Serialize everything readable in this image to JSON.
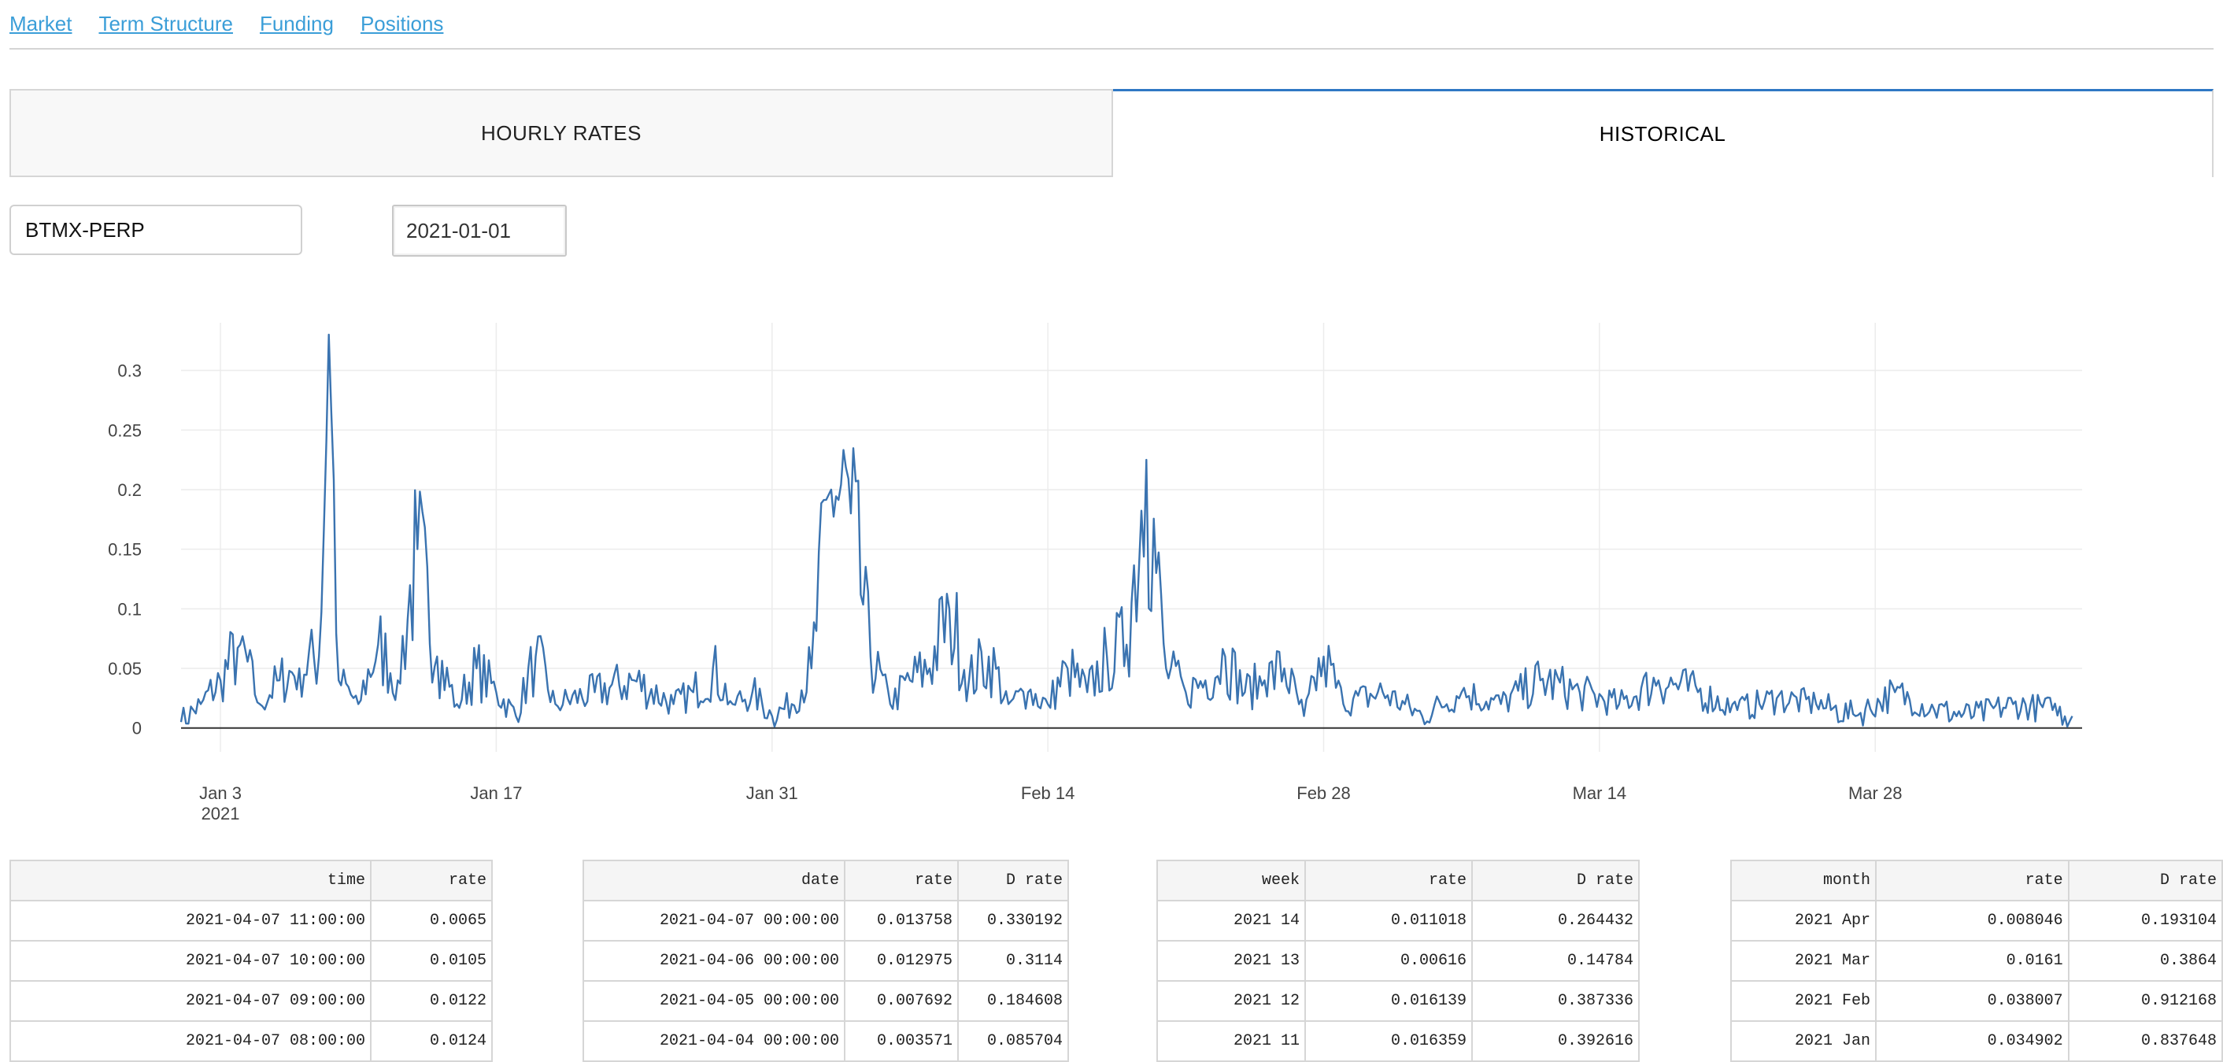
{
  "nav": {
    "items": [
      "Market",
      "Term Structure",
      "Funding",
      "Positions"
    ]
  },
  "tabs": {
    "hourly": "HOURLY RATES",
    "historical": "HISTORICAL",
    "active": "HISTORICAL"
  },
  "controls": {
    "symbol_value": "BTMX-PERP",
    "date_value": "2021-01-01"
  },
  "colors": {
    "line": "#3a73b0",
    "accent": "#2f78c4",
    "link": "#3b9ed8"
  },
  "chart_data": {
    "type": "line",
    "title": "",
    "xlabel": "",
    "ylabel": "",
    "x_range": [
      "2021-01-01",
      "2021-04-07"
    ],
    "ylim": [
      -0.02,
      0.34
    ],
    "x_ticks": [
      "Jan 3\n2021",
      "Jan 17",
      "Jan 31",
      "Feb 14",
      "Feb 28",
      "Mar 14",
      "Mar 28"
    ],
    "y_ticks": [
      "0",
      "0.05",
      "0.1",
      "0.15",
      "0.2",
      "0.25",
      "0.3"
    ],
    "grid": true,
    "series": [
      {
        "name": "",
        "x": [
          "2021-01-01",
          "2021-01-02",
          "2021-01-03",
          "2021-01-04",
          "2021-01-05",
          "2021-01-06",
          "2021-01-07",
          "2021-01-08",
          "2021-01-08 12:00",
          "2021-01-09",
          "2021-01-10",
          "2021-01-11",
          "2021-01-12",
          "2021-01-13",
          "2021-01-14",
          "2021-01-15",
          "2021-01-16",
          "2021-01-17",
          "2021-01-18",
          "2021-01-19",
          "2021-01-20",
          "2021-01-22",
          "2021-01-24",
          "2021-01-26",
          "2021-01-27",
          "2021-01-28",
          "2021-01-29",
          "2021-01-30",
          "2021-01-31",
          "2021-02-01",
          "2021-02-02",
          "2021-02-03",
          "2021-02-04",
          "2021-02-05",
          "2021-02-06",
          "2021-02-07",
          "2021-02-08",
          "2021-02-09",
          "2021-02-10",
          "2021-02-11",
          "2021-02-12",
          "2021-02-13",
          "2021-02-14",
          "2021-02-15",
          "2021-02-16",
          "2021-02-17",
          "2021-02-18",
          "2021-02-19",
          "2021-02-19 12:00",
          "2021-02-20",
          "2021-02-21",
          "2021-02-22",
          "2021-02-23",
          "2021-02-24",
          "2021-02-25",
          "2021-02-26",
          "2021-02-27",
          "2021-02-28",
          "2021-03-01",
          "2021-03-03",
          "2021-03-05",
          "2021-03-07",
          "2021-03-09",
          "2021-03-11",
          "2021-03-13",
          "2021-03-15",
          "2021-03-17",
          "2021-03-19",
          "2021-03-21",
          "2021-03-23",
          "2021-03-25",
          "2021-03-27",
          "2021-03-29",
          "2021-03-31",
          "2021-04-02",
          "2021-04-04",
          "2021-04-06",
          "2021-04-07"
        ],
        "values": [
          0.005,
          0.02,
          0.04,
          0.07,
          0.02,
          0.04,
          0.05,
          0.06,
          0.33,
          0.04,
          0.02,
          0.07,
          0.04,
          0.15,
          0.06,
          0.02,
          0.05,
          0.03,
          0.01,
          0.06,
          0.02,
          0.03,
          0.04,
          0.02,
          0.03,
          0.05,
          0.02,
          0.03,
          0.01,
          0.02,
          0.05,
          0.2,
          0.18,
          0.06,
          0.02,
          0.04,
          0.05,
          0.1,
          0.04,
          0.06,
          0.02,
          0.03,
          0.02,
          0.05,
          0.03,
          0.06,
          0.07,
          0.225,
          0.13,
          0.05,
          0.03,
          0.04,
          0.06,
          0.03,
          0.04,
          0.05,
          0.01,
          0.06,
          0.02,
          0.03,
          0.01,
          0.03,
          0.02,
          0.04,
          0.03,
          0.02,
          0.04,
          0.03,
          0.015,
          0.025,
          0.02,
          0.01,
          0.03,
          0.015,
          0.01,
          0.02,
          0.015,
          0.01
        ]
      }
    ]
  },
  "tables": {
    "hourly": {
      "headers": [
        "time",
        "rate"
      ],
      "rows": [
        [
          "2021-04-07 11:00:00",
          "0.0065"
        ],
        [
          "2021-04-07 10:00:00",
          "0.0105"
        ],
        [
          "2021-04-07 09:00:00",
          "0.0122"
        ],
        [
          "2021-04-07 08:00:00",
          "0.0124"
        ]
      ]
    },
    "daily": {
      "headers": [
        "date",
        "rate",
        "D rate"
      ],
      "rows": [
        [
          "2021-04-07 00:00:00",
          "0.013758",
          "0.330192"
        ],
        [
          "2021-04-06 00:00:00",
          "0.012975",
          "0.3114"
        ],
        [
          "2021-04-05 00:00:00",
          "0.007692",
          "0.184608"
        ],
        [
          "2021-04-04 00:00:00",
          "0.003571",
          "0.085704"
        ]
      ]
    },
    "weekly": {
      "headers": [
        "week",
        "rate",
        "D rate"
      ],
      "rows": [
        [
          "2021 14",
          "0.011018",
          "0.264432"
        ],
        [
          "2021 13",
          "0.00616",
          "0.14784"
        ],
        [
          "2021 12",
          "0.016139",
          "0.387336"
        ],
        [
          "2021 11",
          "0.016359",
          "0.392616"
        ]
      ]
    },
    "monthly": {
      "headers": [
        "month",
        "rate",
        "D rate"
      ],
      "rows": [
        [
          "2021 Apr",
          "0.008046",
          "0.193104"
        ],
        [
          "2021 Mar",
          "0.0161",
          "0.3864"
        ],
        [
          "2021 Feb",
          "0.038007",
          "0.912168"
        ],
        [
          "2021 Jan",
          "0.034902",
          "0.837648"
        ]
      ]
    }
  }
}
